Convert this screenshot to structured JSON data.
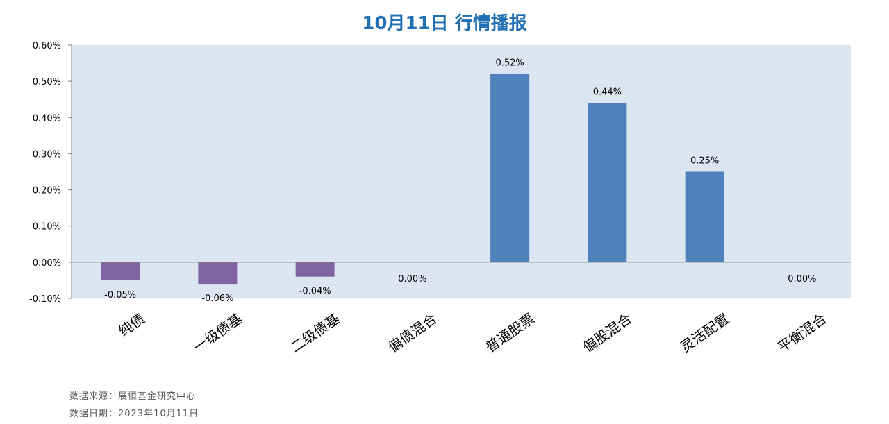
{
  "chart_data": {
    "type": "bar",
    "title": "10月11日  行情播报",
    "categories": [
      "纯债",
      "一级债基",
      "二级债基",
      "偏债混合",
      "普通股票",
      "偏股混合",
      "灵活配置",
      "平衡混合"
    ],
    "values": [
      -0.05,
      -0.06,
      -0.04,
      0.0,
      0.52,
      0.44,
      0.25,
      0.0
    ],
    "data_labels": [
      "-0.05%",
      "-0.06%",
      "-0.04%",
      "0.00%",
      "0.52%",
      "0.44%",
      "0.25%",
      "0.00%"
    ],
    "y_ticks": [
      "0.60%",
      "0.50%",
      "0.40%",
      "0.30%",
      "0.20%",
      "0.10%",
      "0.00%",
      "-0.10%"
    ],
    "ylim": [
      -0.1,
      0.6
    ],
    "xlabel": "",
    "ylabel": "",
    "grid": false,
    "colors": {
      "positive": "#4F81BD",
      "negative": "#8064A2",
      "plot_background": "#DCE6F2",
      "title": "#1F6FB2",
      "axis": "#7F7F7F"
    }
  },
  "footnotes": {
    "source": "数据来源：展恒基金研究中心",
    "date": "数据日期：2023年10月11日"
  }
}
